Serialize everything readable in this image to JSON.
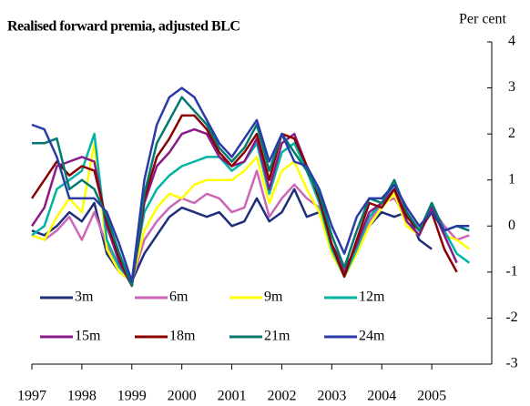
{
  "chart_data": {
    "type": "line",
    "title": "Realised forward premia, adjusted BLC",
    "y_axis_label": "Per cent",
    "x": [
      1997,
      1997.25,
      1997.5,
      1997.75,
      1998,
      1998.25,
      1998.5,
      1998.75,
      1999,
      1999.25,
      1999.5,
      1999.75,
      2000,
      2000.25,
      2000.5,
      2000.75,
      2001,
      2001.25,
      2001.5,
      2001.75,
      2002,
      2002.25,
      2002.5,
      2002.75,
      2003,
      2003.25,
      2003.5,
      2003.75,
      2004,
      2004.25,
      2004.5,
      2004.75,
      2005,
      2005.25,
      2005.5,
      2005.75
    ],
    "xlim": [
      1997,
      2006.2
    ],
    "xticks": [
      1997,
      1998,
      1999,
      2000,
      2001,
      2002,
      2003,
      2004,
      2005
    ],
    "ylim": [
      -3,
      4
    ],
    "yticks": [
      -3,
      -2,
      -1,
      0,
      1,
      2,
      3,
      4
    ],
    "series": [
      {
        "name": "3m",
        "color": "#1f2f7a",
        "values": [
          -0.1,
          -0.2,
          0.0,
          0.3,
          0.1,
          0.5,
          -0.6,
          -1.0,
          -1.2,
          -0.6,
          -0.2,
          0.2,
          0.4,
          0.3,
          0.2,
          0.3,
          0.0,
          0.1,
          0.6,
          0.1,
          0.3,
          0.8,
          0.2,
          0.3,
          -0.4,
          -0.9,
          -0.5,
          0.0,
          0.3,
          0.2,
          0.3,
          -0.3,
          -0.5,
          null,
          null,
          null
        ]
      },
      {
        "name": "6m",
        "color": "#cc66b8",
        "values": [
          -0.2,
          -0.3,
          -0.1,
          0.2,
          -0.3,
          0.3,
          -0.4,
          -0.9,
          -1.2,
          -0.3,
          0.1,
          0.4,
          0.6,
          0.5,
          0.7,
          0.6,
          0.3,
          0.4,
          1.2,
          0.2,
          0.6,
          0.9,
          0.6,
          0.4,
          -0.5,
          -0.9,
          -0.6,
          0.1,
          0.5,
          0.6,
          0.2,
          -0.1,
          0.4,
          0.0,
          -0.3,
          -0.2
        ]
      },
      {
        "name": "9m",
        "color": "#ffff00",
        "values": [
          -0.2,
          -0.3,
          0.2,
          0.6,
          0.3,
          1.8,
          -0.5,
          -1.0,
          -1.2,
          -0.1,
          0.4,
          0.7,
          0.6,
          0.9,
          1.0,
          1.0,
          1.0,
          1.2,
          1.5,
          0.5,
          1.2,
          1.4,
          0.8,
          0.3,
          -0.6,
          -1.1,
          -0.6,
          0.0,
          0.4,
          0.7,
          0.0,
          -0.2,
          0.4,
          -0.2,
          -0.3,
          -0.5
        ]
      },
      {
        "name": "12m",
        "color": "#00b4a4",
        "values": [
          -0.2,
          0.0,
          0.8,
          1.0,
          1.2,
          2.0,
          -0.3,
          -0.9,
          -1.2,
          0.3,
          0.8,
          1.1,
          1.3,
          1.4,
          1.5,
          1.5,
          1.2,
          1.4,
          1.8,
          0.7,
          1.6,
          1.8,
          1.2,
          0.5,
          -0.5,
          -1.1,
          -0.5,
          0.2,
          0.5,
          0.9,
          0.1,
          -0.2,
          0.5,
          -0.1,
          -0.6,
          -0.8
        ]
      },
      {
        "name": "15m",
        "color": "#8a1a8a",
        "values": [
          0.0,
          0.4,
          1.3,
          1.4,
          1.5,
          1.4,
          0.0,
          -0.8,
          -1.3,
          0.5,
          1.3,
          1.6,
          2.0,
          2.1,
          2.0,
          1.5,
          1.3,
          1.4,
          1.9,
          0.8,
          1.8,
          2.0,
          1.3,
          0.6,
          -0.4,
          -1.0,
          -0.4,
          0.3,
          0.5,
          0.8,
          0.1,
          -0.2,
          0.4,
          -0.2,
          -0.8,
          null
        ]
      },
      {
        "name": "18m",
        "color": "#8b0000",
        "values": [
          0.6,
          1.0,
          1.4,
          1.1,
          1.3,
          1.2,
          0.1,
          -0.7,
          -1.3,
          0.6,
          1.5,
          1.9,
          2.4,
          2.4,
          2.1,
          1.6,
          1.3,
          1.6,
          2.0,
          1.0,
          2.0,
          1.9,
          1.3,
          0.6,
          -0.4,
          -1.1,
          -0.3,
          0.5,
          0.4,
          0.8,
          0.2,
          -0.1,
          0.3,
          -0.5,
          -1.0,
          null
        ]
      },
      {
        "name": "21m",
        "color": "#007a6e",
        "values": [
          1.8,
          1.8,
          1.9,
          0.8,
          1.0,
          0.8,
          0.2,
          -0.6,
          -1.3,
          0.7,
          1.8,
          2.3,
          2.8,
          2.5,
          2.2,
          1.7,
          1.4,
          1.7,
          2.2,
          1.2,
          2.0,
          1.6,
          1.2,
          0.7,
          -0.2,
          -0.9,
          -0.1,
          0.6,
          0.5,
          1.0,
          0.3,
          -0.1,
          0.5,
          -0.1,
          0.0,
          -0.1
        ]
      },
      {
        "name": "24m",
        "color": "#2a3aa8",
        "values": [
          2.2,
          2.1,
          1.5,
          0.6,
          0.6,
          0.6,
          0.3,
          -0.4,
          -1.2,
          1.0,
          2.2,
          2.8,
          3.0,
          2.8,
          2.3,
          1.8,
          1.5,
          1.9,
          2.3,
          1.4,
          2.0,
          1.4,
          1.3,
          0.8,
          0.0,
          -0.6,
          0.2,
          0.6,
          0.6,
          0.9,
          0.4,
          0.0,
          0.3,
          -0.1,
          0.0,
          0.0
        ]
      }
    ]
  }
}
